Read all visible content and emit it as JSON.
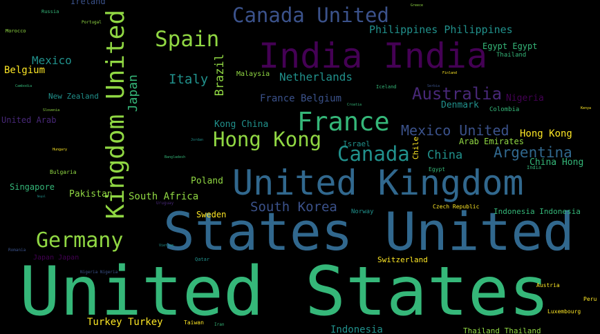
{
  "palette": {
    "background": "#000000",
    "purple": "#440154",
    "indigo": "#3b528b",
    "blue": "#31688e",
    "teal": "#21918c",
    "green": "#35b779",
    "lime": "#90d743",
    "yellow": "#fde725"
  },
  "words": [
    {
      "id": "united-states",
      "text": "United States"
    },
    {
      "id": "states-united",
      "text": "States United"
    },
    {
      "id": "united-kingdom",
      "text": "United Kingdom"
    },
    {
      "id": "kingdom-united",
      "text": "Kingdom United"
    },
    {
      "id": "india-india",
      "text": "India India"
    },
    {
      "id": "france",
      "text": "France"
    },
    {
      "id": "canada-united",
      "text": "Canada United"
    },
    {
      "id": "canada",
      "text": "Canada"
    },
    {
      "id": "germany",
      "text": "Germany"
    },
    {
      "id": "spain",
      "text": "Spain"
    },
    {
      "id": "hong-kong",
      "text": "Hong Kong"
    },
    {
      "id": "australia",
      "text": "Australia"
    },
    {
      "id": "mexico-united",
      "text": "Mexico United"
    },
    {
      "id": "south-korea",
      "text": "South Korea"
    },
    {
      "id": "argentina",
      "text": "Argentina"
    },
    {
      "id": "netherlands",
      "text": "Netherlands"
    },
    {
      "id": "philippines-philippines",
      "text": "Philippines Philippines"
    },
    {
      "id": "china",
      "text": "China"
    },
    {
      "id": "italy",
      "text": "Italy"
    },
    {
      "id": "japan",
      "text": "Japan"
    },
    {
      "id": "brazil",
      "text": "Brazil"
    },
    {
      "id": "mexico",
      "text": "Mexico"
    },
    {
      "id": "france-belgium",
      "text": "France Belgium"
    },
    {
      "id": "belgium",
      "text": "Belgium"
    },
    {
      "id": "south-africa",
      "text": "South Africa"
    },
    {
      "id": "denmark",
      "text": "Denmark"
    },
    {
      "id": "hong-kong-small",
      "text": "Hong Kong"
    },
    {
      "id": "china-hong",
      "text": "China Hong"
    },
    {
      "id": "kong-china",
      "text": "Kong China"
    },
    {
      "id": "pakistan",
      "text": "Pakistan"
    },
    {
      "id": "poland",
      "text": "Poland"
    },
    {
      "id": "nigeria",
      "text": "Nigeria"
    },
    {
      "id": "arab-emirates",
      "text": "Arab Emirates"
    },
    {
      "id": "egypt-egypt",
      "text": "Egypt Egypt"
    },
    {
      "id": "united-arab",
      "text": "United Arab"
    },
    {
      "id": "singapore",
      "text": "Singapore"
    },
    {
      "id": "new-zealand",
      "text": "New Zealand"
    },
    {
      "id": "sweden",
      "text": "Sweden"
    },
    {
      "id": "turkey-turkey",
      "text": "Turkey Turkey"
    },
    {
      "id": "indonesia",
      "text": "Indonesia"
    },
    {
      "id": "indonesia-indonesia",
      "text": "Indonesia Indonesia"
    },
    {
      "id": "thailand-thailand",
      "text": "Thailand Thailand"
    },
    {
      "id": "switzerland",
      "text": "Switzerland"
    },
    {
      "id": "israel",
      "text": "Israel"
    },
    {
      "id": "chile",
      "text": "Chile"
    },
    {
      "id": "malaysia",
      "text": "Malaysia"
    },
    {
      "id": "norway",
      "text": "Norway"
    },
    {
      "id": "colombia",
      "text": "Colombia"
    },
    {
      "id": "thailand",
      "text": "Thailand"
    },
    {
      "id": "czech-republic",
      "text": "Czech Republic"
    },
    {
      "id": "japan-japan",
      "text": "Japan Japan"
    },
    {
      "id": "ireland",
      "text": "Ireland"
    },
    {
      "id": "bulgaria",
      "text": "Bulgaria"
    },
    {
      "id": "austria",
      "text": "Austria"
    },
    {
      "id": "luxembourg",
      "text": "Luxembourg"
    },
    {
      "id": "peru",
      "text": "Peru"
    },
    {
      "id": "egypt",
      "text": "Egypt"
    },
    {
      "id": "india",
      "text": "India"
    },
    {
      "id": "iceland",
      "text": "Iceland"
    },
    {
      "id": "russia",
      "text": "Russia"
    },
    {
      "id": "morocco",
      "text": "Morocco"
    },
    {
      "id": "portugal",
      "text": "Portugal"
    },
    {
      "id": "qatar",
      "text": "Qatar"
    },
    {
      "id": "taiwan",
      "text": "Taiwan"
    },
    {
      "id": "iran",
      "text": "Iran"
    },
    {
      "id": "romania",
      "text": "Romania"
    },
    {
      "id": "hungary",
      "text": "Hungary"
    },
    {
      "id": "serbia",
      "text": "Serbia"
    },
    {
      "id": "greece",
      "text": "Greece"
    },
    {
      "id": "uruguay",
      "text": "Uruguay"
    },
    {
      "id": "nigeria-nigeria",
      "text": "Nigeria Nigeria"
    },
    {
      "id": "slovenia",
      "text": "Slovenia"
    },
    {
      "id": "cambodia",
      "text": "Cambodia"
    },
    {
      "id": "vietnam",
      "text": "Vietnam"
    },
    {
      "id": "jordan",
      "text": "Jordan"
    },
    {
      "id": "bangladesh",
      "text": "Bangladesh"
    },
    {
      "id": "finland",
      "text": "Finland"
    },
    {
      "id": "nepal",
      "text": "Nepal"
    },
    {
      "id": "croatia",
      "text": "Croatia"
    },
    {
      "id": "kenya",
      "text": "Kenya"
    }
  ]
}
